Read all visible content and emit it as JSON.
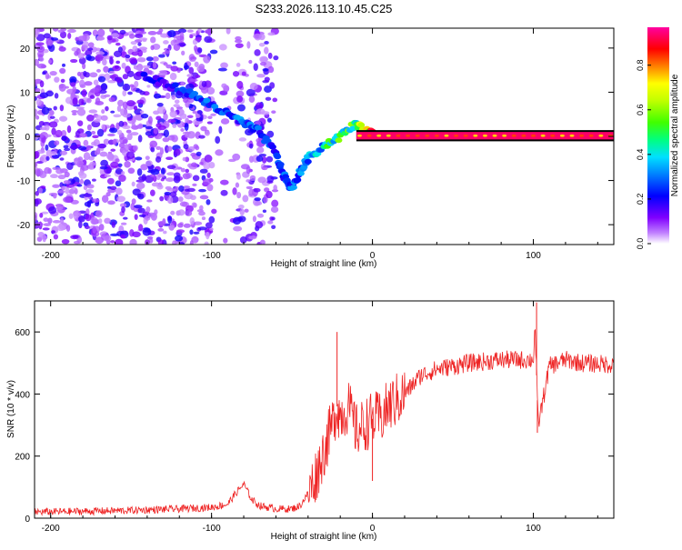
{
  "title": "S233.2026.113.10.45.C25",
  "chart_data": [
    {
      "type": "heatmap",
      "name": "spectrogram",
      "xlabel": "Height of straight line (km)",
      "ylabel": "Frequency (Hz)",
      "xlim": [
        -210,
        150
      ],
      "ylim": [
        -24.5,
        24.5
      ],
      "xticks": [
        -200,
        -100,
        0,
        100
      ],
      "yticks": [
        -20,
        -10,
        0,
        10,
        20
      ],
      "colorbar": {
        "label": "Normalized spectral amplitude",
        "range": [
          0,
          0.97
        ],
        "ticks": [
          "0.0",
          "0.2",
          "0.4",
          "0.6",
          "0.8"
        ],
        "tick_values": [
          0,
          0.2,
          0.4,
          0.6,
          0.8
        ],
        "colors": [
          "#ffffff",
          "#c080ff",
          "#8000ff",
          "#0000ff",
          "#00c0ff",
          "#00ff80",
          "#40ff00",
          "#c0ff00",
          "#ffff00",
          "#ff8000",
          "#ff0000",
          "#ff00a0"
        ]
      },
      "ridge": {
        "description": "dominant frequency track",
        "x": [
          -145,
          -130,
          -115,
          -100,
          -90,
          -80,
          -70,
          -60,
          -55,
          -50,
          -45,
          -40,
          -30,
          -20,
          -10,
          -5,
          0,
          20,
          50,
          100,
          150
        ],
        "y": [
          14,
          12,
          10,
          7,
          5,
          3,
          1,
          -4,
          -9,
          -12,
          -8,
          -5,
          -2,
          0,
          3,
          1,
          1,
          0.5,
          0.5,
          0.5,
          0.5
        ],
        "amplitude": [
          0.2,
          0.2,
          0.25,
          0.3,
          0.3,
          0.3,
          0.3,
          0.25,
          0.3,
          0.3,
          0.35,
          0.4,
          0.45,
          0.6,
          0.5,
          0.8,
          0.85,
          0.85,
          0.85,
          0.85,
          0.85
        ]
      },
      "carrier_band": {
        "x_start": -10,
        "x_end": 150,
        "y_low": -0.7,
        "y_high": 1.0
      }
    },
    {
      "type": "line",
      "name": "snr",
      "xlabel": "Height of straight line (km)",
      "ylabel": "SNR (10 * v/v)",
      "xlim": [
        -210,
        150
      ],
      "ylim": [
        0,
        700
      ],
      "xticks": [
        -200,
        -100,
        0,
        100
      ],
      "yticks": [
        0,
        200,
        400,
        600
      ],
      "color": "#ee2222",
      "series": [
        {
          "name": "SNR",
          "x": [
            -210,
            -180,
            -150,
            -120,
            -100,
            -90,
            -85,
            -80,
            -75,
            -70,
            -60,
            -50,
            -45,
            -40,
            -35,
            -30,
            -25,
            -22,
            -20,
            -15,
            -10,
            -5,
            0,
            5,
            10,
            20,
            30,
            40,
            50,
            60,
            80,
            100,
            101,
            103,
            110,
            120,
            130,
            150
          ],
          "y": [
            20,
            22,
            25,
            30,
            35,
            45,
            80,
            110,
            60,
            40,
            30,
            30,
            40,
            80,
            140,
            220,
            300,
            360,
            330,
            360,
            280,
            300,
            320,
            320,
            360,
            400,
            460,
            480,
            490,
            500,
            510,
            510,
            620,
            300,
            490,
            510,
            500,
            495
          ],
          "spikes": [
            {
              "x": -22,
              "y": 600
            },
            {
              "x": 102,
              "y": 695
            },
            {
              "x": 102.5,
              "y": 275
            },
            {
              "x": 0,
              "y": 120
            }
          ]
        }
      ]
    }
  ]
}
